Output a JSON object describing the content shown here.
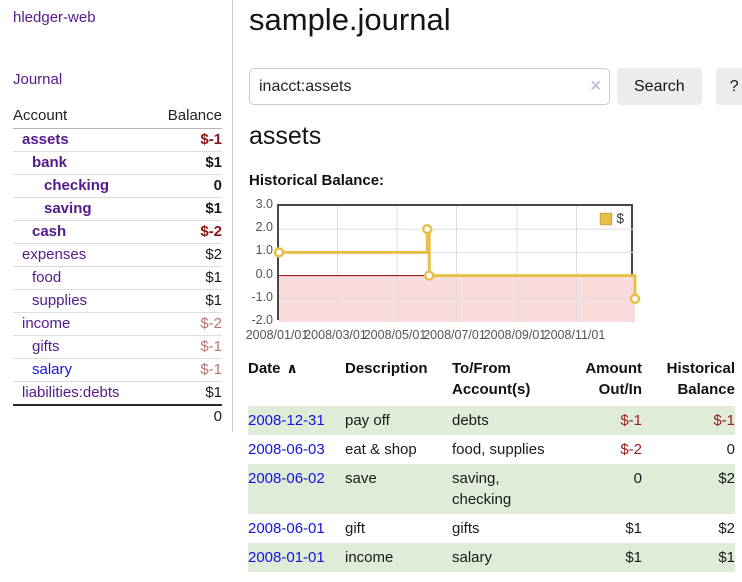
{
  "colors": {
    "link_purple": "#551a8b",
    "link_blue": "#1414dd",
    "negative_strong": "#8b1515",
    "negative_soft": "#bd7474",
    "register_negative": "#9a2020",
    "row_green": "#deecd8",
    "series_gold": "#e6c04b"
  },
  "sidebar": {
    "brand": "hledger-web",
    "nav_journal": "Journal",
    "accounts_table": {
      "header_account": "Account",
      "header_balance": "Balance",
      "rows": [
        {
          "name": "assets",
          "balance": "$-1"
        },
        {
          "name": "bank",
          "balance": "$1"
        },
        {
          "name": "checking",
          "balance": "0"
        },
        {
          "name": "saving",
          "balance": "$1"
        },
        {
          "name": "cash",
          "balance": "$-2"
        },
        {
          "name": "expenses",
          "balance": "$2"
        },
        {
          "name": "food",
          "balance": "$1"
        },
        {
          "name": "supplies",
          "balance": "$1"
        },
        {
          "name": "income",
          "balance": "$-2"
        },
        {
          "name": "gifts",
          "balance": "$-1"
        },
        {
          "name": "salary",
          "balance": "$-1"
        },
        {
          "name": "liabilities:debts",
          "balance": "$1"
        }
      ],
      "total": "0"
    }
  },
  "main": {
    "title": "sample.journal",
    "search": {
      "value": "inacct:assets",
      "clear_icon": "×",
      "search_button": "Search",
      "help_button": "?"
    },
    "account_heading": "assets",
    "chart_heading": "Historical Balance:"
  },
  "chart_data": {
    "type": "line",
    "step": true,
    "title": "Historical Balance:",
    "ylim": [
      -2,
      3
    ],
    "y_ticks": [
      3.0,
      2.0,
      1.0,
      0.0,
      -1.0,
      -2.0
    ],
    "x_range_days": [
      0,
      365
    ],
    "x_ticks": [
      {
        "label": "2008/01/01",
        "day": 0
      },
      {
        "label": "2008/03/01",
        "day": 60
      },
      {
        "label": "2008/05/01",
        "day": 121
      },
      {
        "label": "2008/07/01",
        "day": 182
      },
      {
        "label": "2008/09/01",
        "day": 244
      },
      {
        "label": "2008/11/01",
        "day": 305
      }
    ],
    "series": [
      {
        "name": "$",
        "color": "#e6c04b",
        "points": [
          {
            "date": "2008-01-01",
            "day": 0,
            "value": 1
          },
          {
            "date": "2008-06-01",
            "day": 152,
            "value": 2
          },
          {
            "date": "2008-06-03",
            "day": 154,
            "value": 0
          },
          {
            "date": "2008-12-31",
            "day": 365,
            "value": -1
          }
        ]
      }
    ],
    "negative_region_fill": "#fadcdc",
    "zero_line_color": "#a00000",
    "grid_color": "#dedede",
    "legend_position": "top-right"
  },
  "register": {
    "headers": {
      "date": "Date",
      "sort_icon": "∧",
      "description": "Description",
      "accounts": "To/From Account(s)",
      "amount": "Amount Out/In",
      "balance": "Historical Balance"
    },
    "rows": [
      {
        "date": "2008-12-31",
        "description": "pay off",
        "accounts": "debts",
        "amount": "$-1",
        "balance": "$-1"
      },
      {
        "date": "2008-06-03",
        "description": "eat & shop",
        "accounts": "food, supplies",
        "amount": "$-2",
        "balance": "0"
      },
      {
        "date": "2008-06-02",
        "description": "save",
        "accounts": "saving, checking",
        "amount": "0",
        "balance": "$2"
      },
      {
        "date": "2008-06-01",
        "description": "gift",
        "accounts": "gifts",
        "amount": "$1",
        "balance": "$2"
      },
      {
        "date": "2008-01-01",
        "description": "income",
        "accounts": "salary",
        "amount": "$1",
        "balance": "$1"
      }
    ]
  }
}
